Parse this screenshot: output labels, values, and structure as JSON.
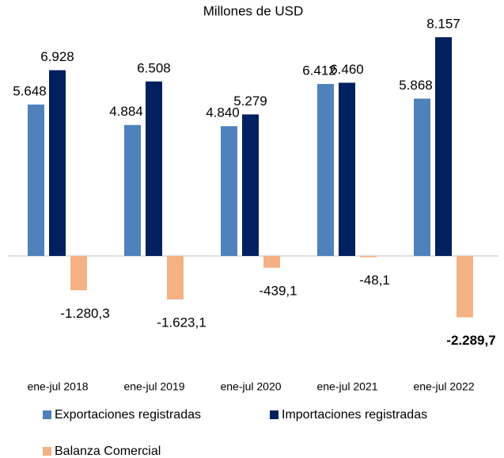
{
  "chart_data": {
    "type": "bar",
    "title": "Millones de USD",
    "categories": [
      "ene-jul 2018",
      "ene-jul 2019",
      "ene-jul 2020",
      "ene-jul 2021",
      "ene-jul 2022"
    ],
    "series": [
      {
        "name": "Exportaciones registradas",
        "color": "#4f81bd",
        "values": [
          5648,
          4884,
          4840,
          6412,
          5868
        ],
        "value_labels": [
          "5.648",
          "4.884",
          "4.840",
          "6.412",
          "5.868"
        ]
      },
      {
        "name": "Importaciones registradas",
        "color": "#002060",
        "values": [
          6928,
          6508,
          5279,
          6460,
          8157
        ],
        "value_labels": [
          "6.928",
          "6.508",
          "5.279",
          "6.460",
          "8.157"
        ]
      },
      {
        "name": "Balanza Comercial",
        "color": "#f4b183",
        "values": [
          -1280.3,
          -1623.1,
          -439.1,
          -48.1,
          -2289.7
        ],
        "value_labels": [
          "-1.280,3",
          "-1.623,1",
          "-439,1",
          "-48,1",
          "-2.289,7"
        ],
        "bold_value_labels": [
          false,
          false,
          false,
          false,
          true
        ]
      }
    ]
  }
}
